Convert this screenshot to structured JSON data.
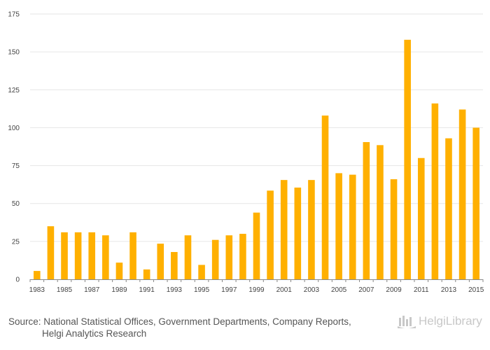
{
  "chart_data": {
    "type": "bar",
    "title": "",
    "xlabel": "",
    "ylabel": "",
    "ylim": [
      0,
      175
    ],
    "yticks": [
      0,
      25,
      50,
      75,
      100,
      125,
      150,
      175
    ],
    "grid": true,
    "bar_color": "#ffb000",
    "categories": [
      "1983",
      "1984",
      "1985",
      "1986",
      "1987",
      "1988",
      "1989",
      "1990",
      "1991",
      "1992",
      "1993",
      "1994",
      "1995",
      "1996",
      "1997",
      "1998",
      "1999",
      "2000",
      "2001",
      "2002",
      "2003",
      "2004",
      "2005",
      "2006",
      "2007",
      "2008",
      "2009",
      "2010",
      "2011",
      "2012",
      "2013",
      "2014",
      "2015"
    ],
    "tick_labels": [
      "1983",
      "1985",
      "1987",
      "1989",
      "1991",
      "1993",
      "1995",
      "1997",
      "1999",
      "2001",
      "2003",
      "2005",
      "2007",
      "2009",
      "2011",
      "2013",
      "2015"
    ],
    "values": [
      5.5,
      35,
      31,
      31,
      31,
      29,
      11,
      31,
      6.5,
      23.5,
      18,
      29,
      9.5,
      26,
      29,
      30,
      44,
      58.5,
      65.5,
      60.5,
      65.5,
      108,
      70,
      69,
      90.5,
      88.5,
      66,
      158,
      80,
      116,
      93,
      112,
      100
    ]
  },
  "footer": {
    "source_line1": "Source: National Statistical Offices, Government Departments, Company Reports,",
    "source_line2": "Helgi Analytics Research"
  },
  "brand": {
    "name": "HelgiLibrary",
    "icon": "library-logo-icon"
  }
}
